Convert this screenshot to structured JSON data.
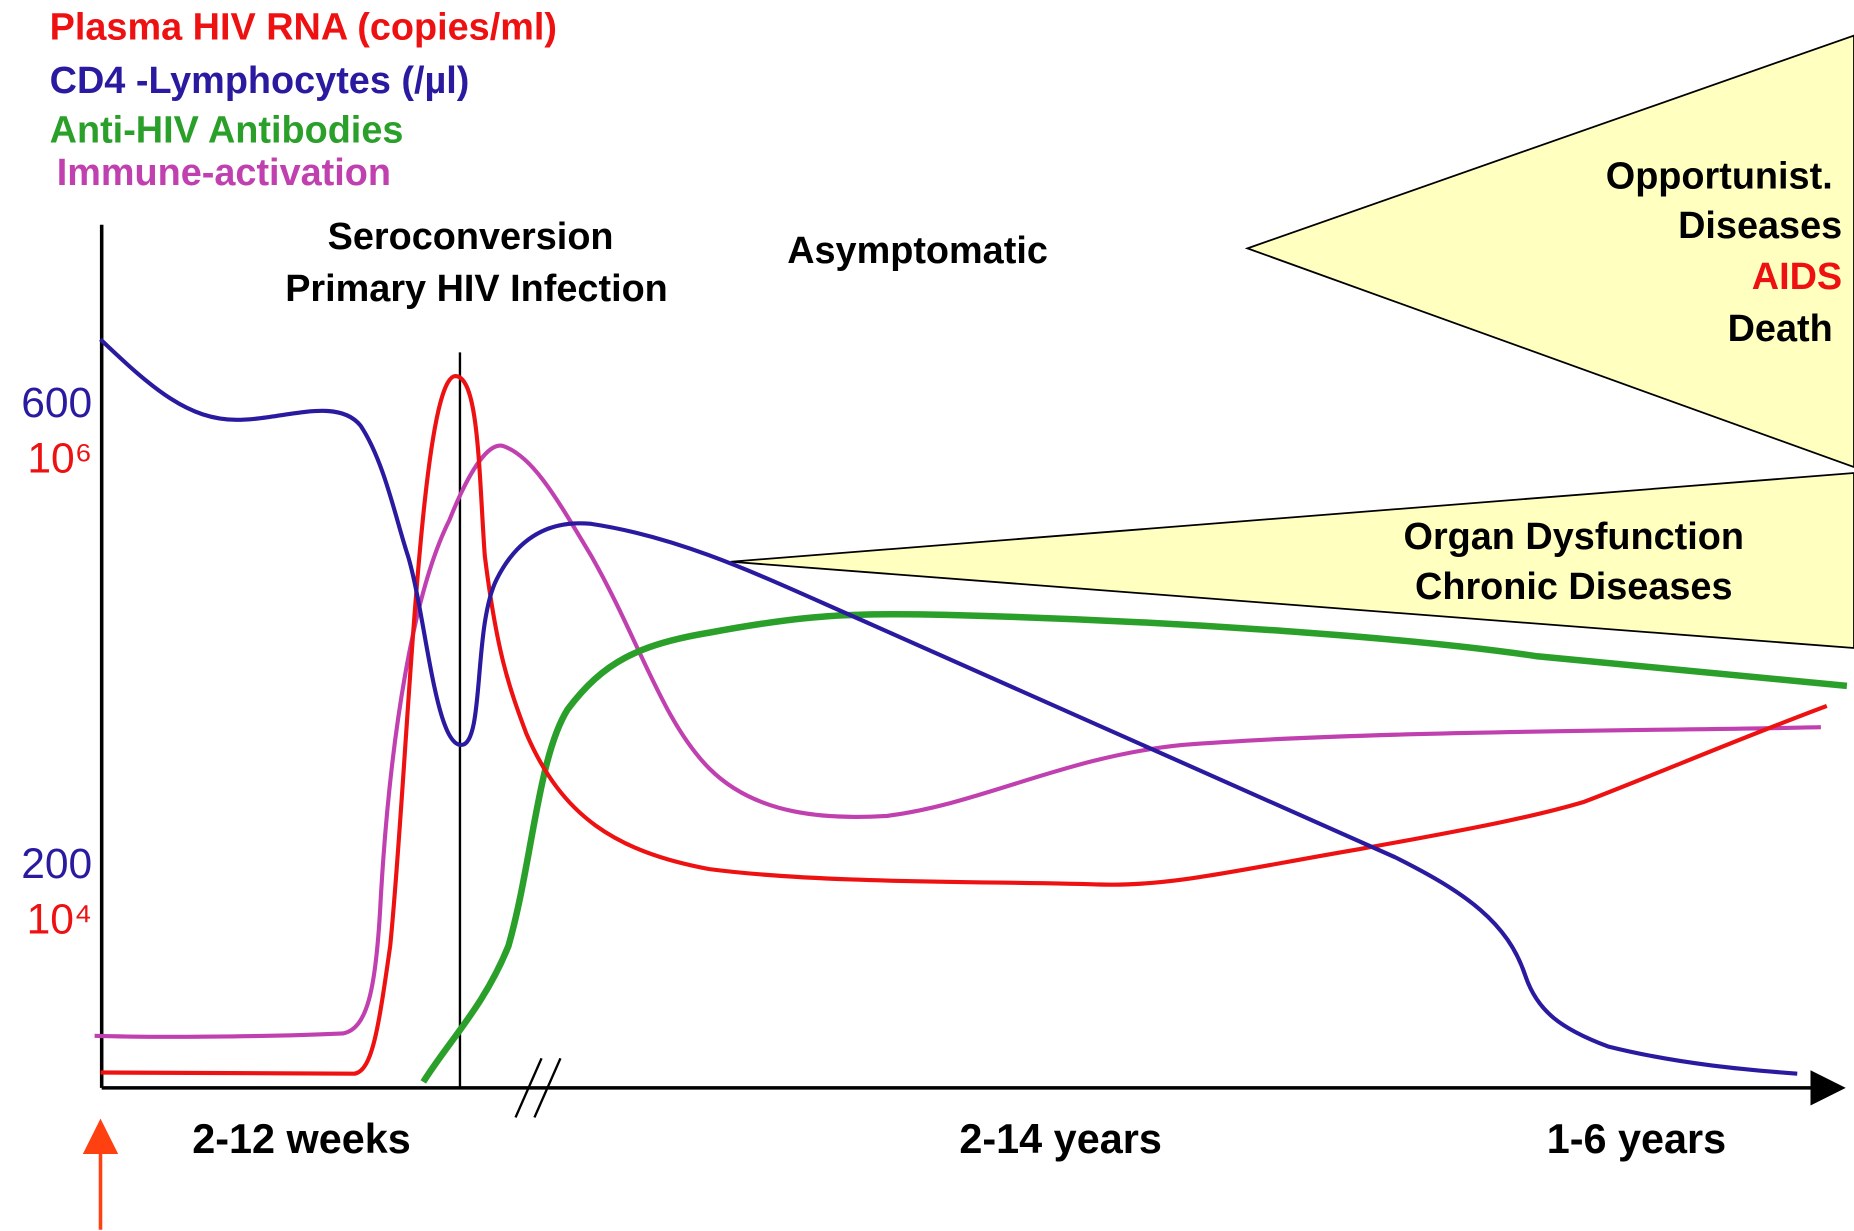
{
  "legend": [
    "Plasma HIV RNA (copies/ml)",
    "CD4 -Lymphocytes (/µl)",
    "Anti-HIV Antibodies",
    "Immune-activation"
  ],
  "phases": [
    "Seroconversion",
    "Primary HIV Infection",
    "Asymptomatic"
  ],
  "y_labels": [
    "600",
    "10⁶",
    "200",
    "10⁴"
  ],
  "x_labels": [
    "2-12 weeks",
    "2-14 years",
    "1-6 years"
  ],
  "outcomes": {
    "opportunistic": [
      "Opportunist.",
      "Diseases",
      "AIDS",
      "Death"
    ],
    "organ": [
      "Organ Dysfunction",
      "Chronic Diseases"
    ]
  }
}
